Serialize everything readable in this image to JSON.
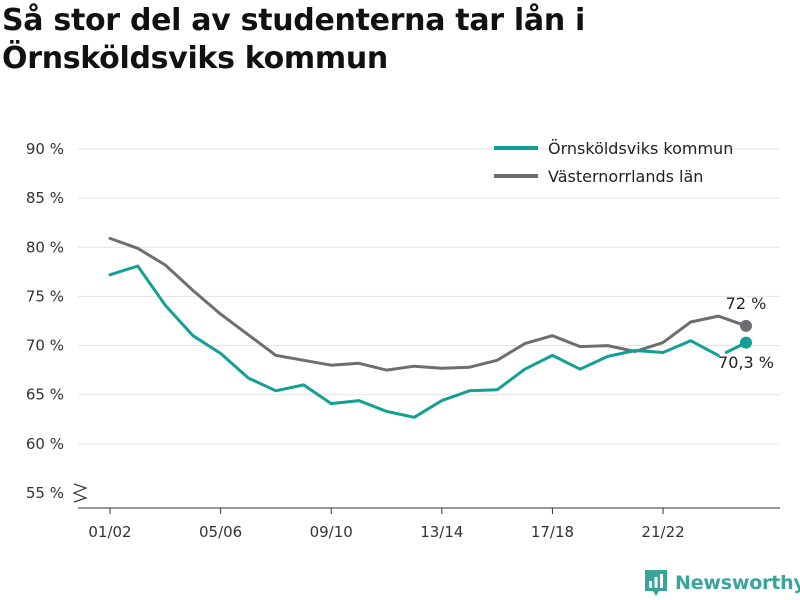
{
  "title": {
    "line1": "Så stor del av studenterna tar lån i",
    "line2": "Örnsköldsviks kommun"
  },
  "brand": {
    "name": "Newsworthy",
    "icon": "newsworthy-logo-icon",
    "color": "#3aa39a"
  },
  "chart_data": {
    "type": "line",
    "title": "Så stor del av studenterna tar lån i Örnsköldsviks kommun",
    "xlabel": "",
    "ylabel": "",
    "ylim": [
      55,
      90
    ],
    "y_ticks": [
      55,
      60,
      65,
      70,
      75,
      80,
      85,
      90
    ],
    "y_tick_labels": [
      "55 %",
      "60 %",
      "65 %",
      "70 %",
      "75 %",
      "80 %",
      "85 %",
      "90 %"
    ],
    "y_axis_break": true,
    "grid": true,
    "legend_position": "top-right",
    "x": [
      "01/02",
      "02/03",
      "03/04",
      "04/05",
      "05/06",
      "06/07",
      "07/08",
      "08/09",
      "09/10",
      "10/11",
      "11/12",
      "12/13",
      "13/14",
      "14/15",
      "15/16",
      "16/17",
      "17/18",
      "18/19",
      "19/20",
      "20/21",
      "21/22",
      "22/23",
      "23/24",
      "24/25"
    ],
    "x_tick_labels": [
      "01/02",
      "05/06",
      "09/10",
      "13/14",
      "17/18",
      "21/22"
    ],
    "series": [
      {
        "name": "Örnsköldsviks kommun",
        "color": "#12a095",
        "values": [
          77.2,
          78.1,
          74.1,
          71.0,
          69.2,
          66.7,
          65.4,
          66.0,
          64.1,
          64.4,
          63.3,
          62.7,
          64.4,
          65.4,
          65.5,
          67.6,
          69.0,
          67.6,
          68.9,
          69.5,
          69.3,
          70.5,
          69.0,
          70.3
        ],
        "gap_before_last": true,
        "end_label": "70,3 %"
      },
      {
        "name": "Västernorrlands län",
        "color": "#6e6e72",
        "values": [
          80.9,
          79.9,
          78.2,
          75.6,
          73.2,
          71.1,
          69.0,
          68.5,
          68.0,
          68.2,
          67.5,
          67.9,
          67.7,
          67.8,
          68.5,
          70.2,
          71.0,
          69.9,
          70.0,
          69.4,
          70.3,
          72.4,
          73.0,
          72.0
        ],
        "gap_before_last": false,
        "end_label": "72 %"
      }
    ]
  }
}
